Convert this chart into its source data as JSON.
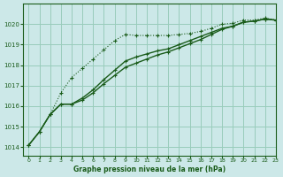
{
  "bg_color": "#cce8e8",
  "grid_color": "#99ccbb",
  "line_color": "#1a5c1a",
  "xlabel": "Graphe pression niveau de la mer (hPa)",
  "xlabel_color": "#1a5c1a",
  "xlim": [
    -0.5,
    23
  ],
  "ylim": [
    1013.6,
    1021.0
  ],
  "yticks": [
    1014,
    1015,
    1016,
    1017,
    1018,
    1019,
    1020
  ],
  "xticks": [
    0,
    1,
    2,
    3,
    4,
    5,
    6,
    7,
    8,
    9,
    10,
    11,
    12,
    13,
    14,
    15,
    16,
    17,
    18,
    19,
    20,
    21,
    22,
    23
  ],
  "series1_x": [
    0,
    1,
    2,
    3,
    4,
    5,
    6,
    7,
    8,
    9,
    10,
    11,
    12,
    13,
    14,
    15,
    16,
    17,
    18,
    19,
    20,
    21,
    22,
    23
  ],
  "series1_y": [
    1014.1,
    1014.75,
    1015.6,
    1016.65,
    1017.4,
    1017.85,
    1018.3,
    1018.75,
    1019.2,
    1019.5,
    1019.45,
    1019.45,
    1019.45,
    1019.45,
    1019.5,
    1019.55,
    1019.65,
    1019.8,
    1020.0,
    1020.05,
    1020.2,
    1020.2,
    1020.3,
    1020.2
  ],
  "series2_x": [
    0,
    1,
    2,
    3,
    4,
    5,
    6,
    7,
    8,
    9,
    10,
    11,
    12,
    13,
    14,
    15,
    16,
    17,
    18,
    19,
    20,
    21,
    22,
    23
  ],
  "series2_y": [
    1014.1,
    1014.75,
    1015.6,
    1016.1,
    1016.1,
    1016.4,
    1016.8,
    1017.3,
    1017.75,
    1018.2,
    1018.4,
    1018.55,
    1018.7,
    1018.8,
    1019.0,
    1019.2,
    1019.4,
    1019.6,
    1019.8,
    1019.9,
    1020.1,
    1020.15,
    1020.25,
    1020.2
  ],
  "series3_x": [
    0,
    1,
    2,
    3,
    4,
    5,
    6,
    7,
    8,
    9,
    10,
    11,
    12,
    13,
    14,
    15,
    16,
    17,
    18,
    19,
    20,
    21,
    22,
    23
  ],
  "series3_y": [
    1014.1,
    1014.75,
    1015.6,
    1016.1,
    1016.1,
    1016.3,
    1016.65,
    1017.1,
    1017.5,
    1017.9,
    1018.1,
    1018.3,
    1018.5,
    1018.65,
    1018.85,
    1019.05,
    1019.25,
    1019.5,
    1019.75,
    1019.9,
    1020.1,
    1020.15,
    1020.25,
    1020.2
  ]
}
